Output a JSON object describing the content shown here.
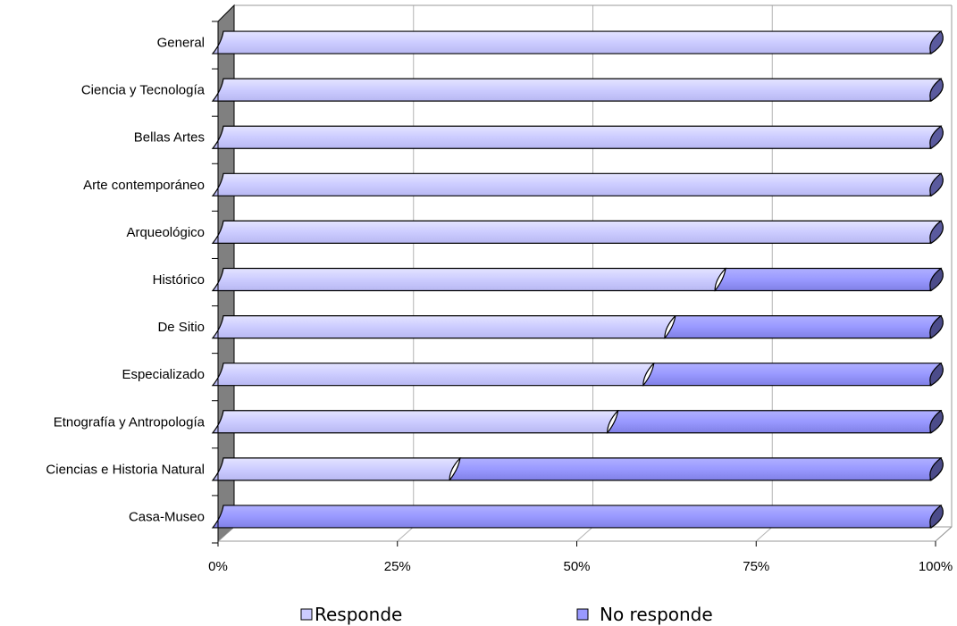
{
  "chart_data": {
    "type": "bar",
    "orientation": "horizontal",
    "stacked": "percent",
    "categories": [
      "General",
      "Ciencia y Tecnología",
      "Bellas Artes",
      "Arte contemporáneo",
      "Arqueológico",
      "Histórico",
      "De Sitio",
      "Especializado",
      "Etnografía y Antropología",
      "Ciencias e Historia Natural",
      "Casa-Museo"
    ],
    "series": [
      {
        "name": "Responde",
        "color": "#ccccff",
        "values": [
          100,
          100,
          100,
          100,
          100,
          70,
          63,
          60,
          55,
          33,
          0
        ]
      },
      {
        "name": "No responde",
        "color": "#9999ff",
        "values": [
          0,
          0,
          0,
          0,
          0,
          30,
          37,
          40,
          45,
          67,
          100
        ]
      }
    ],
    "x_ticks": [
      "0%",
      "25%",
      "50%",
      "75%",
      "100%"
    ],
    "xlim": [
      0,
      100
    ],
    "grid": true,
    "legend": "bottom-center"
  }
}
